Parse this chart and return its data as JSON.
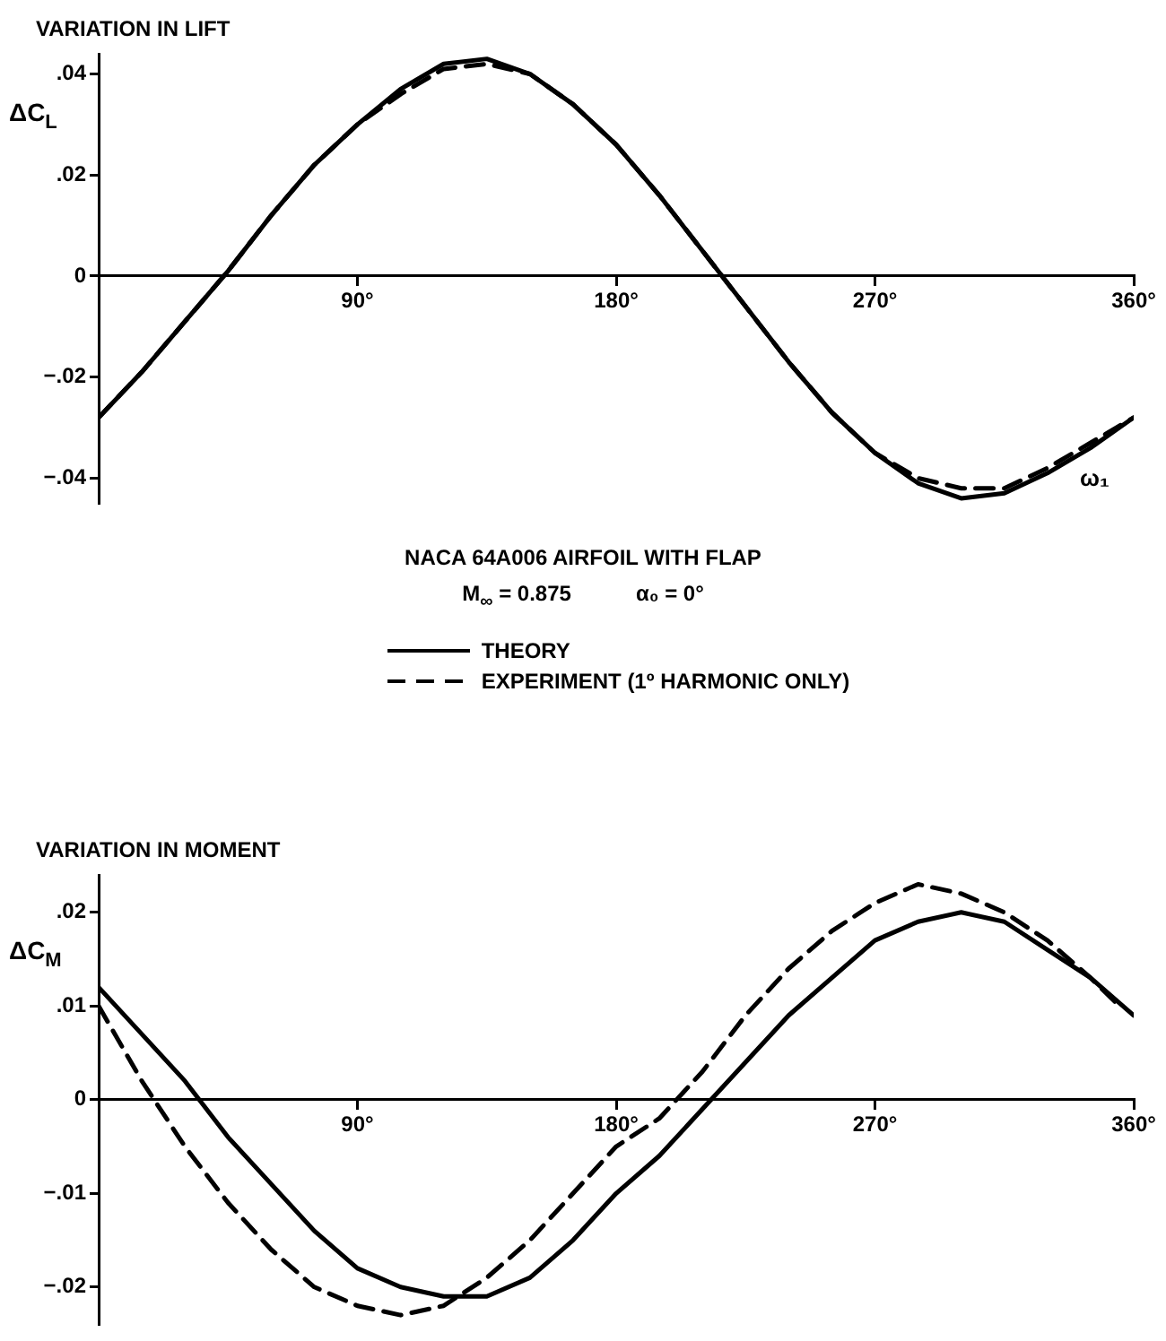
{
  "chart_data": [
    {
      "type": "line",
      "title": "VARIATION IN LIFT",
      "ylabel": "ΔC$_{L}$",
      "xlabel": "ω₁",
      "legend": "bottom",
      "marker": "none",
      "grid": false,
      "annotations": [
        "NACA 64A006 AIRFOIL WITH FLAP",
        "M$_{∞}$ = 0.875",
        "α₀ = 0°"
      ],
      "xlim": [
        0,
        360
      ],
      "xticks": [
        {
          "value": 90,
          "label": "90°"
        },
        {
          "value": 180,
          "label": "180°"
        },
        {
          "value": 270,
          "label": "270°"
        },
        {
          "value": 360,
          "label": "360°"
        }
      ],
      "ylim": [
        -0.045,
        0.044
      ],
      "yticks": [
        {
          "value": -0.04,
          "label": "−.04"
        },
        {
          "value": -0.02,
          "label": "−.02"
        },
        0,
        {
          "value": 0.02,
          "label": ".02"
        },
        {
          "value": 0.04,
          "label": ".04"
        }
      ],
      "x": [
        0,
        15,
        30,
        45,
        60,
        75,
        90,
        105,
        120,
        135,
        150,
        165,
        180,
        195,
        210,
        225,
        240,
        255,
        270,
        285,
        300,
        315,
        330,
        345,
        360
      ],
      "series": [
        {
          "name": "THEORY",
          "color": "#000000",
          "line_style": "solid",
          "values": [
            -0.028,
            -0.019,
            -0.009,
            0.001,
            0.012,
            0.022,
            0.03,
            0.037,
            0.042,
            0.043,
            0.04,
            0.034,
            0.026,
            0.016,
            0.005,
            -0.006,
            -0.017,
            -0.027,
            -0.035,
            -0.041,
            -0.044,
            -0.043,
            -0.039,
            -0.034,
            -0.028
          ]
        },
        {
          "name": "EXPERIMENT  (1º HARMONIC ONLY)",
          "color": "#000000",
          "line_style": "dashed",
          "values": [
            -0.028,
            -0.019,
            -0.009,
            0.001,
            0.012,
            0.022,
            0.03,
            0.036,
            0.041,
            0.042,
            0.04,
            0.034,
            0.026,
            0.016,
            0.005,
            -0.006,
            -0.017,
            -0.027,
            -0.035,
            -0.04,
            -0.042,
            -0.042,
            -0.038,
            -0.033,
            -0.028
          ]
        }
      ]
    },
    {
      "type": "line",
      "title": "VARIATION IN MOMENT",
      "ylabel": "ΔC$_{M}$",
      "legend": false,
      "marker": "none",
      "grid": false,
      "xlim": [
        0,
        360
      ],
      "xticks": [
        {
          "value": 90,
          "label": "90°"
        },
        {
          "value": 180,
          "label": "180°"
        },
        {
          "value": 270,
          "label": "270°"
        },
        {
          "value": 360,
          "label": "360°"
        }
      ],
      "ylim": [
        -0.024,
        0.024
      ],
      "yticks": [
        {
          "value": -0.02,
          "label": "−.02"
        },
        {
          "value": -0.01,
          "label": "−.01"
        },
        0,
        {
          "value": 0.01,
          "label": ".01"
        },
        {
          "value": 0.02,
          "label": ".02"
        }
      ],
      "x": [
        0,
        15,
        30,
        45,
        60,
        75,
        90,
        105,
        120,
        135,
        150,
        165,
        180,
        195,
        210,
        225,
        240,
        255,
        270,
        285,
        300,
        315,
        330,
        345,
        360
      ],
      "series": [
        {
          "color": "#000000",
          "line_style": "solid",
          "values": [
            0.012,
            0.007,
            0.002,
            -0.004,
            -0.009,
            -0.014,
            -0.018,
            -0.02,
            -0.021,
            -0.021,
            -0.019,
            -0.015,
            -0.01,
            -0.006,
            -0.001,
            0.004,
            0.009,
            0.013,
            0.017,
            0.019,
            0.02,
            0.019,
            0.016,
            0.013,
            0.009
          ]
        },
        {
          "color": "#000000",
          "line_style": "dashed",
          "x": [
            0,
            15,
            30,
            45,
            60,
            75,
            90,
            105,
            120,
            135,
            150,
            165,
            180,
            195,
            210,
            225,
            240,
            255,
            270,
            285,
            300,
            315,
            330,
            345,
            355
          ],
          "values": [
            0.01,
            0.002,
            -0.005,
            -0.011,
            -0.016,
            -0.02,
            -0.022,
            -0.023,
            -0.022,
            -0.019,
            -0.015,
            -0.01,
            -0.005,
            -0.002,
            0.003,
            0.009,
            0.014,
            0.018,
            0.021,
            0.023,
            0.022,
            0.02,
            0.017,
            0.013,
            0.01
          ]
        }
      ]
    }
  ]
}
